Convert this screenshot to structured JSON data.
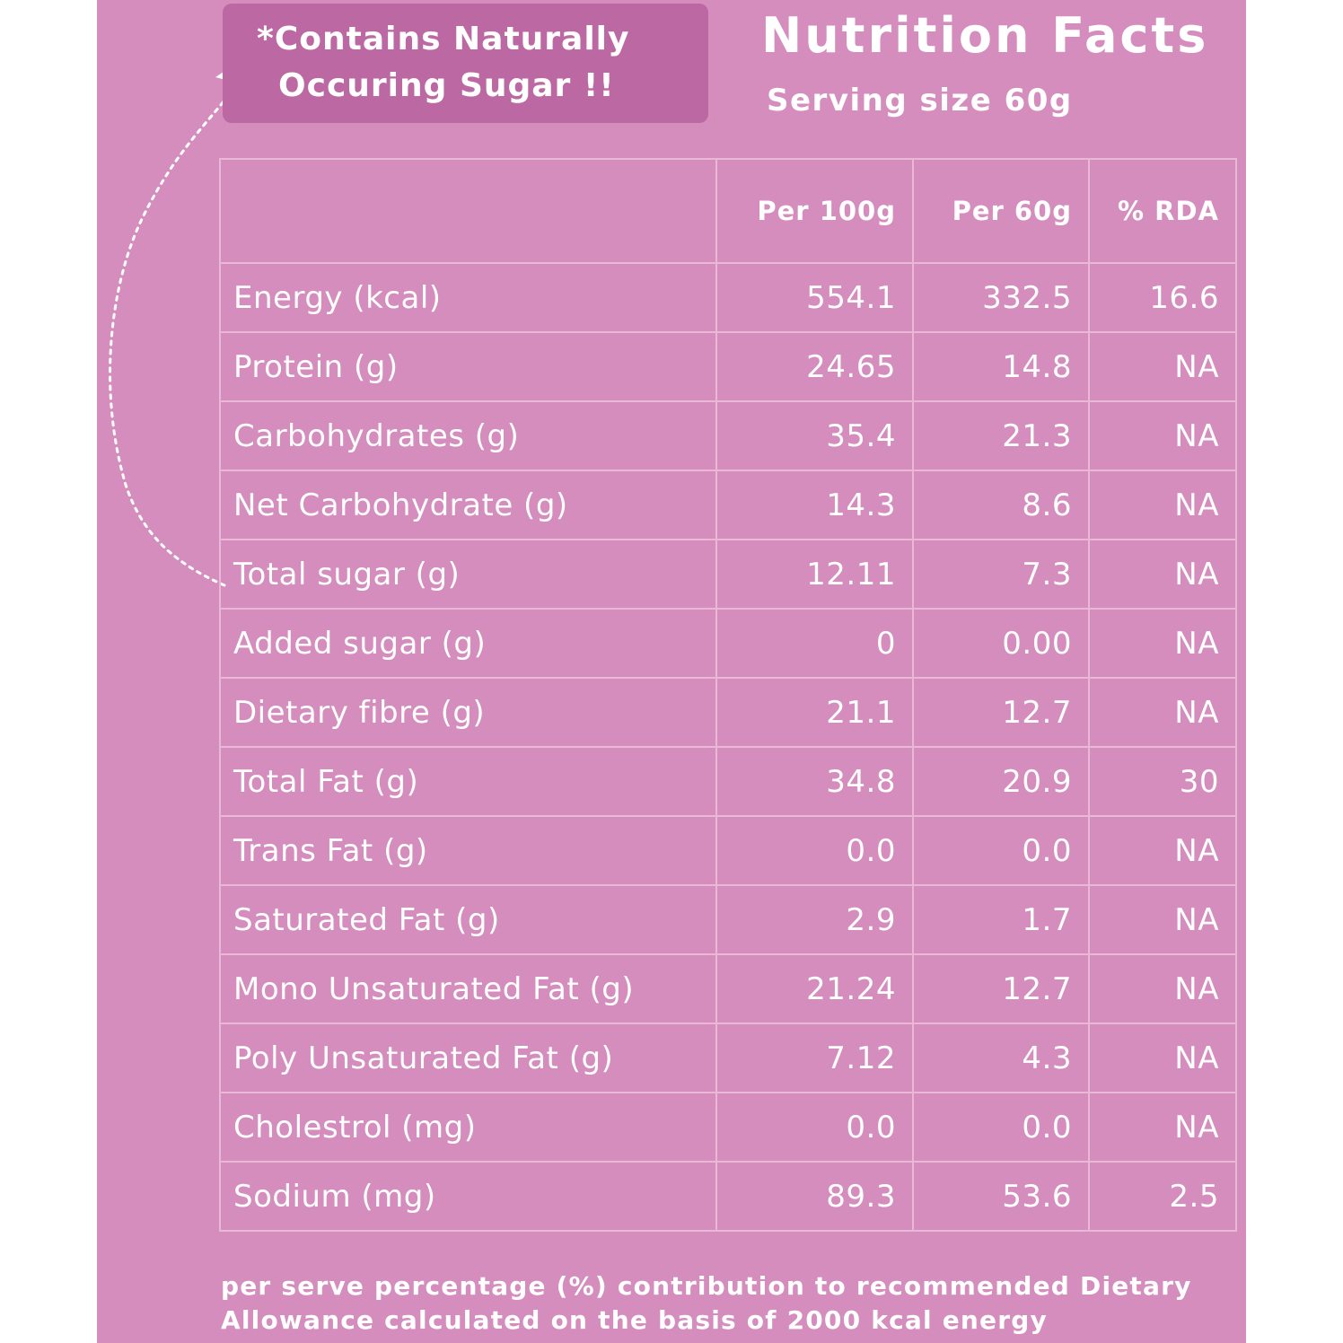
{
  "callout": {
    "line1": "*Contains Naturally",
    "line2": "Occuring Sugar !!"
  },
  "header": {
    "title": "Nutrition Facts",
    "serving": "Serving size 60g"
  },
  "table": {
    "columns": [
      "",
      "Per 100g",
      "Per 60g",
      "% RDA"
    ],
    "rows": [
      {
        "name": "Energy (kcal)",
        "per100": "554.1",
        "per60": "332.5",
        "rda": "16.6"
      },
      {
        "name": "Protein (g)",
        "per100": "24.65",
        "per60": "14.8",
        "rda": "NA"
      },
      {
        "name": "Carbohydrates (g)",
        "per100": "35.4",
        "per60": "21.3",
        "rda": "NA"
      },
      {
        "name": "Net Carbohydrate (g)",
        "per100": "14.3",
        "per60": "8.6",
        "rda": "NA"
      },
      {
        "name": "Total sugar (g)",
        "per100": "12.11",
        "per60": "7.3",
        "rda": "NA"
      },
      {
        "name": "Added sugar (g)",
        "per100": "0",
        "per60": "0.00",
        "rda": "NA"
      },
      {
        "name": "Dietary fibre (g)",
        "per100": "21.1",
        "per60": "12.7",
        "rda": "NA"
      },
      {
        "name": "Total Fat (g)",
        "per100": "34.8",
        "per60": "20.9",
        "rda": "30"
      },
      {
        "name": "Trans Fat (g)",
        "per100": "0.0",
        "per60": "0.0",
        "rda": "NA"
      },
      {
        "name": "Saturated Fat (g)",
        "per100": "2.9",
        "per60": "1.7",
        "rda": "NA"
      },
      {
        "name": "Mono Unsaturated Fat (g)",
        "per100": "21.24",
        "per60": "12.7",
        "rda": "NA"
      },
      {
        "name": "Poly Unsaturated Fat (g)",
        "per100": "7.12",
        "per60": "4.3",
        "rda": "NA"
      },
      {
        "name": "Cholestrol (mg)",
        "per100": "0.0",
        "per60": "0.0",
        "rda": "NA"
      },
      {
        "name": "Sodium (mg)",
        "per100": "89.3",
        "per60": "53.6",
        "rda": "2.5"
      }
    ]
  },
  "footnote": {
    "line1": "per serve percentage (%) contribution to recommended Dietary",
    "line2": "Allowance calculated on the basis of 2000 kcal energy"
  },
  "colors": {
    "background": "#d48dbd",
    "callout": "#bc68a3",
    "grid": "#e8b8d6",
    "text": "#ffffff"
  }
}
